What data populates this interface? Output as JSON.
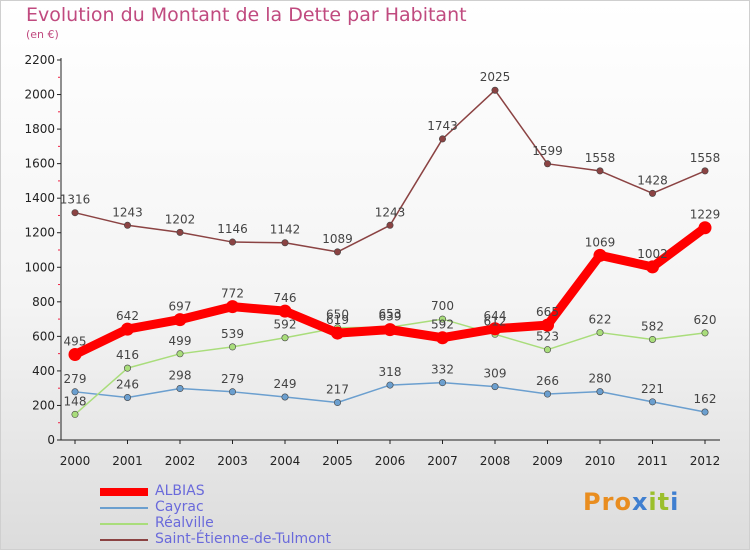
{
  "title": "Evolution du Montant de la Dette par Habitant",
  "unit": "(en €)",
  "brand": {
    "letters": [
      "P",
      "r",
      "o",
      "x",
      "i",
      "t",
      "i"
    ],
    "colors": [
      "#e98d1f",
      "#e98d1f",
      "#e98d1f",
      "#3f7fd0",
      "#9bbf2c",
      "#9bbf2c",
      "#3f7fd0"
    ]
  },
  "chart_data": {
    "type": "line",
    "title": "Evolution du Montant de la Dette par Habitant",
    "ylabel": "(en €)",
    "xlabel": "",
    "x": [
      "2000",
      "2001",
      "2002",
      "2003",
      "2004",
      "2005",
      "2006",
      "2007",
      "2008",
      "2009",
      "2010",
      "2011",
      "2012"
    ],
    "ylim": [
      0,
      2200
    ],
    "yticks": [
      0,
      200,
      400,
      600,
      800,
      1000,
      1200,
      1400,
      1600,
      1800,
      2000,
      2200
    ],
    "grid": false,
    "legend_position": "bottom-left",
    "series": [
      {
        "name": "ALBIAS",
        "color": "#ff0000",
        "emphasis": true,
        "values": [
          495,
          642,
          697,
          772,
          746,
          619,
          639,
          592,
          644,
          665,
          1069,
          1002,
          1229
        ]
      },
      {
        "name": "Cayrac",
        "color": "#6b9fcf",
        "values": [
          279,
          246,
          298,
          279,
          249,
          217,
          318,
          332,
          309,
          266,
          280,
          221,
          162
        ]
      },
      {
        "name": "Réalville",
        "color": "#a9dd7b",
        "values": [
          148,
          416,
          499,
          539,
          592,
          650,
          653,
          700,
          612,
          523,
          622,
          582,
          620
        ]
      },
      {
        "name": "Saint-Étienne-de-Tulmont",
        "color": "#8b4343",
        "values": [
          1316,
          1243,
          1202,
          1146,
          1142,
          1089,
          1243,
          1743,
          2025,
          1599,
          1558,
          1428,
          1558
        ]
      }
    ]
  }
}
